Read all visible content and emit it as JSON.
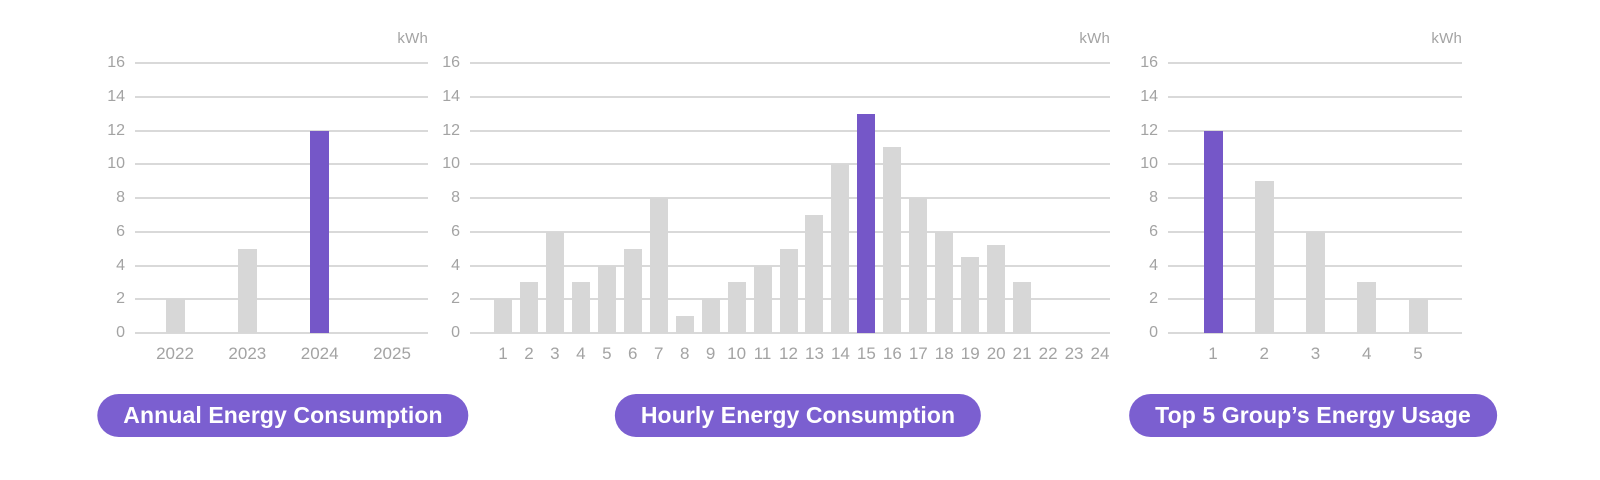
{
  "unit_label": "kWh",
  "colors": {
    "accent": "#7557c8",
    "bar_gray": "#d7d7d7",
    "gridline": "#d9d9d9",
    "axis_text": "#a3a3a3",
    "button_bg": "#7b5fd0",
    "button_text": "#ffffff"
  },
  "chart_data": [
    {
      "type": "bar",
      "title": "Annual Energy Consumption",
      "unit": "kWh",
      "ylabel": "kWh",
      "xlabel": "",
      "ylim": [
        0,
        16
      ],
      "yticks": [
        0,
        2,
        4,
        6,
        8,
        10,
        12,
        14,
        16
      ],
      "grid": true,
      "legend": false,
      "categories": [
        "2022",
        "2023",
        "2024",
        "2025"
      ],
      "values": [
        2,
        5,
        12,
        0
      ],
      "highlight_index": 2,
      "highlight_category": "2024"
    },
    {
      "type": "bar",
      "title": "Hourly Energy Consumption",
      "unit": "kWh",
      "ylabel": "kWh",
      "xlabel": "",
      "ylim": [
        0,
        16
      ],
      "yticks": [
        0,
        2,
        4,
        6,
        8,
        10,
        12,
        14,
        16
      ],
      "grid": true,
      "legend": false,
      "categories": [
        "1",
        "2",
        "3",
        "4",
        "5",
        "6",
        "7",
        "8",
        "9",
        "10",
        "11",
        "12",
        "13",
        "14",
        "15",
        "16",
        "17",
        "18",
        "19",
        "20",
        "21",
        "22",
        "23",
        "24"
      ],
      "values": [
        2,
        3,
        6,
        3,
        4,
        5,
        8,
        1,
        2,
        3,
        4,
        5,
        7,
        10,
        13,
        11,
        8,
        6,
        4.5,
        5.2,
        3,
        0,
        0,
        0
      ],
      "highlight_index": 14,
      "highlight_category": "15"
    },
    {
      "type": "bar",
      "title": "Top 5 Group’s Energy Usage",
      "unit": "kWh",
      "ylabel": "kWh",
      "xlabel": "",
      "ylim": [
        0,
        16
      ],
      "yticks": [
        0,
        2,
        4,
        6,
        8,
        10,
        12,
        14,
        16
      ],
      "grid": true,
      "legend": false,
      "categories": [
        "1",
        "2",
        "3",
        "4",
        "5"
      ],
      "values": [
        12,
        9,
        6,
        3,
        2
      ],
      "highlight_index": 0,
      "highlight_category": "1"
    }
  ]
}
